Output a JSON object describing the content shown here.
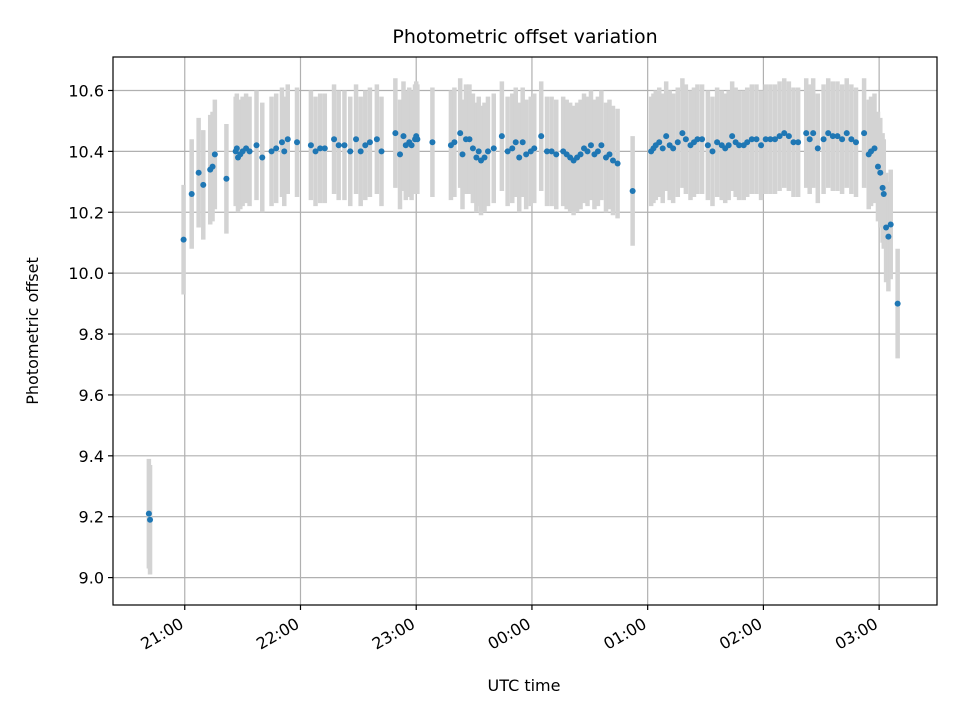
{
  "chart_data": {
    "type": "scatter",
    "title": "Photometric offset variation",
    "xlabel": "UTC time",
    "ylabel": "Photometric offset",
    "x_unit": "hours",
    "xlim": [
      20.38,
      27.5
    ],
    "ylim": [
      8.91,
      10.71
    ],
    "yticks": [
      9.0,
      9.2,
      9.4,
      9.6,
      9.8,
      10.0,
      10.2,
      10.4,
      10.6
    ],
    "ytick_labels": [
      "9.0",
      "9.2",
      "9.4",
      "9.6",
      "9.8",
      "10.0",
      "10.2",
      "10.4",
      "10.6"
    ],
    "xticks": [
      21,
      22,
      23,
      24,
      25,
      26,
      27
    ],
    "xtick_labels": [
      "21:00",
      "22:00",
      "23:00",
      "00:00",
      "01:00",
      "02:00",
      "03:00"
    ],
    "grid": true,
    "point_color": "#1f77b4",
    "errorbar_color": "#d3d3d3",
    "series": [
      {
        "error": 0.18,
        "points": [
          [
            20.69,
            9.21
          ],
          [
            20.7,
            9.19
          ],
          [
            20.99,
            10.11
          ],
          [
            21.06,
            10.26
          ],
          [
            21.12,
            10.33
          ],
          [
            21.16,
            10.29
          ],
          [
            21.22,
            10.34
          ],
          [
            21.24,
            10.35
          ],
          [
            21.26,
            10.39
          ],
          [
            21.36,
            10.31
          ],
          [
            21.44,
            10.4
          ],
          [
            21.45,
            10.41
          ],
          [
            21.46,
            10.38
          ],
          [
            21.48,
            10.39
          ],
          [
            21.5,
            10.4
          ],
          [
            21.53,
            10.41
          ],
          [
            21.56,
            10.4
          ],
          [
            21.62,
            10.42
          ],
          [
            21.67,
            10.38
          ],
          [
            21.75,
            10.4
          ],
          [
            21.79,
            10.41
          ],
          [
            21.84,
            10.43
          ],
          [
            21.86,
            10.4
          ],
          [
            21.89,
            10.44
          ],
          [
            21.97,
            10.43
          ],
          [
            22.09,
            10.42
          ],
          [
            22.13,
            10.4
          ],
          [
            22.17,
            10.41
          ],
          [
            22.21,
            10.41
          ],
          [
            22.29,
            10.44
          ],
          [
            22.33,
            10.42
          ],
          [
            22.38,
            10.42
          ],
          [
            22.43,
            10.4
          ],
          [
            22.48,
            10.44
          ],
          [
            22.52,
            10.4
          ],
          [
            22.56,
            10.42
          ],
          [
            22.6,
            10.43
          ],
          [
            22.66,
            10.44
          ],
          [
            22.7,
            10.4
          ],
          [
            22.82,
            10.46
          ],
          [
            22.86,
            10.39
          ],
          [
            22.89,
            10.45
          ],
          [
            22.91,
            10.42
          ],
          [
            22.94,
            10.43
          ],
          [
            22.96,
            10.42
          ],
          [
            22.99,
            10.44
          ],
          [
            23.01,
            10.44
          ],
          [
            23.0,
            10.45
          ],
          [
            23.14,
            10.43
          ],
          [
            23.3,
            10.42
          ],
          [
            23.33,
            10.43
          ],
          [
            23.38,
            10.46
          ],
          [
            23.4,
            10.39
          ],
          [
            23.43,
            10.44
          ],
          [
            23.46,
            10.44
          ],
          [
            23.49,
            10.41
          ],
          [
            23.52,
            10.38
          ],
          [
            23.54,
            10.4
          ],
          [
            23.56,
            10.37
          ],
          [
            23.59,
            10.38
          ],
          [
            23.62,
            10.4
          ],
          [
            23.67,
            10.41
          ],
          [
            23.74,
            10.45
          ],
          [
            23.79,
            10.4
          ],
          [
            23.83,
            10.41
          ],
          [
            23.86,
            10.43
          ],
          [
            23.89,
            10.38
          ],
          [
            23.92,
            10.43
          ],
          [
            23.95,
            10.39
          ],
          [
            23.99,
            10.4
          ],
          [
            24.02,
            10.41
          ],
          [
            24.08,
            10.45
          ],
          [
            24.13,
            10.4
          ],
          [
            24.17,
            10.4
          ],
          [
            24.21,
            10.39
          ],
          [
            24.27,
            10.4
          ],
          [
            24.3,
            10.39
          ],
          [
            24.33,
            10.38
          ],
          [
            24.36,
            10.37
          ],
          [
            24.39,
            10.38
          ],
          [
            24.42,
            10.39
          ],
          [
            24.45,
            10.41
          ],
          [
            24.48,
            10.4
          ],
          [
            24.51,
            10.42
          ],
          [
            24.54,
            10.39
          ],
          [
            24.57,
            10.4
          ],
          [
            24.6,
            10.42
          ],
          [
            24.64,
            10.38
          ],
          [
            24.67,
            10.39
          ],
          [
            24.7,
            10.37
          ],
          [
            24.74,
            10.36
          ],
          [
            24.87,
            10.27
          ],
          [
            25.03,
            10.4
          ],
          [
            25.05,
            10.41
          ],
          [
            25.07,
            10.42
          ],
          [
            25.1,
            10.43
          ],
          [
            25.13,
            10.41
          ],
          [
            25.16,
            10.45
          ],
          [
            25.19,
            10.42
          ],
          [
            25.22,
            10.41
          ],
          [
            25.26,
            10.43
          ],
          [
            25.3,
            10.46
          ],
          [
            25.33,
            10.44
          ],
          [
            25.37,
            10.42
          ],
          [
            25.4,
            10.43
          ],
          [
            25.43,
            10.44
          ],
          [
            25.47,
            10.44
          ],
          [
            25.52,
            10.42
          ],
          [
            25.56,
            10.4
          ],
          [
            25.6,
            10.43
          ],
          [
            25.64,
            10.42
          ],
          [
            25.67,
            10.41
          ],
          [
            25.7,
            10.42
          ],
          [
            25.73,
            10.45
          ],
          [
            25.76,
            10.43
          ],
          [
            25.79,
            10.42
          ],
          [
            25.83,
            10.42
          ],
          [
            25.86,
            10.43
          ],
          [
            25.9,
            10.44
          ],
          [
            25.94,
            10.44
          ],
          [
            25.98,
            10.42
          ],
          [
            26.02,
            10.44
          ],
          [
            26.06,
            10.44
          ],
          [
            26.1,
            10.44
          ],
          [
            26.14,
            10.45
          ],
          [
            26.18,
            10.46
          ],
          [
            26.22,
            10.45
          ],
          [
            26.26,
            10.43
          ],
          [
            26.3,
            10.43
          ],
          [
            26.37,
            10.46
          ],
          [
            26.4,
            10.44
          ],
          [
            26.43,
            10.46
          ],
          [
            26.47,
            10.41
          ],
          [
            26.52,
            10.44
          ],
          [
            26.56,
            10.46
          ],
          [
            26.6,
            10.45
          ],
          [
            26.64,
            10.45
          ],
          [
            26.68,
            10.44
          ],
          [
            26.72,
            10.46
          ],
          [
            26.76,
            10.44
          ],
          [
            26.8,
            10.43
          ],
          [
            26.87,
            10.46
          ],
          [
            26.91,
            10.39
          ],
          [
            26.93,
            10.4
          ],
          [
            26.96,
            10.41
          ],
          [
            26.99,
            10.35
          ],
          [
            27.01,
            10.33
          ],
          [
            27.03,
            10.28
          ],
          [
            27.04,
            10.26
          ],
          [
            27.06,
            10.15
          ],
          [
            27.08,
            10.12
          ],
          [
            27.1,
            10.16
          ],
          [
            27.16,
            9.9
          ]
        ]
      }
    ]
  }
}
